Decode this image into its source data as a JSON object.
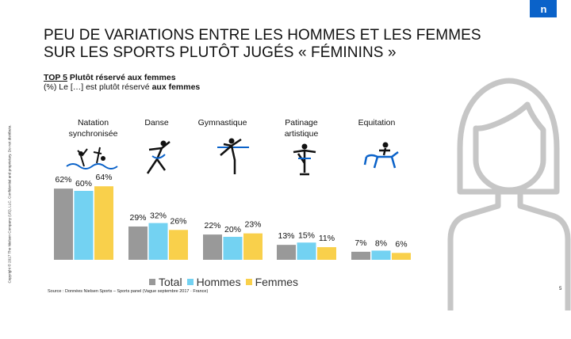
{
  "brand": {
    "logo_text": "n",
    "accent": "#0a62c9"
  },
  "title": {
    "line1": "PEU DE VARIATIONS ENTRE LES HOMMES ET LES FEMMES",
    "line2": "SUR LES SPORTS PLUTÔT JUGÉS « FÉMININS »"
  },
  "subtitle": {
    "top_label": "TOP 5",
    "top_text": " Plutôt réservé aux femmes",
    "question_prefix": "(%) Le […] est plutôt réservé ",
    "question_bold": "aux femmes"
  },
  "copyright": "Copyright © 2017 The Nielsen Company (US), LLC. Confidential and proprietary. Do not distribute.",
  "chart_data": {
    "type": "bar",
    "categories": [
      "Natation synchronisée",
      "Danse",
      "Gymnastique",
      "Patinage artistique",
      "Equitation"
    ],
    "series": [
      {
        "name": "Total",
        "color": "#999999",
        "values": [
          62,
          29,
          22,
          13,
          7
        ]
      },
      {
        "name": "Hommes",
        "color": "#73d2f2",
        "values": [
          60,
          32,
          20,
          15,
          8
        ]
      },
      {
        "name": "Femmes",
        "color": "#f9d04b",
        "values": [
          64,
          26,
          23,
          11,
          6
        ]
      }
    ],
    "value_suffix": "%",
    "ylim": [
      0,
      100
    ]
  },
  "category_labels": [
    [
      "Natation",
      "synchronisée"
    ],
    [
      "Danse"
    ],
    [
      "Gymnastique"
    ],
    [
      "Patinage",
      "artistique"
    ],
    [
      "Equitation"
    ]
  ],
  "icons": [
    "synchronized-swimming-icon",
    "dance-icon",
    "gymnastics-icon",
    "figure-skating-icon",
    "horse-riding-icon"
  ],
  "legend": {
    "total": "Total",
    "men": "Hommes",
    "women": "Femmes"
  },
  "source": "Source : Données Nielsen Sports – Sports panel (Vague septembre 2017 · France)",
  "page_number": "5"
}
